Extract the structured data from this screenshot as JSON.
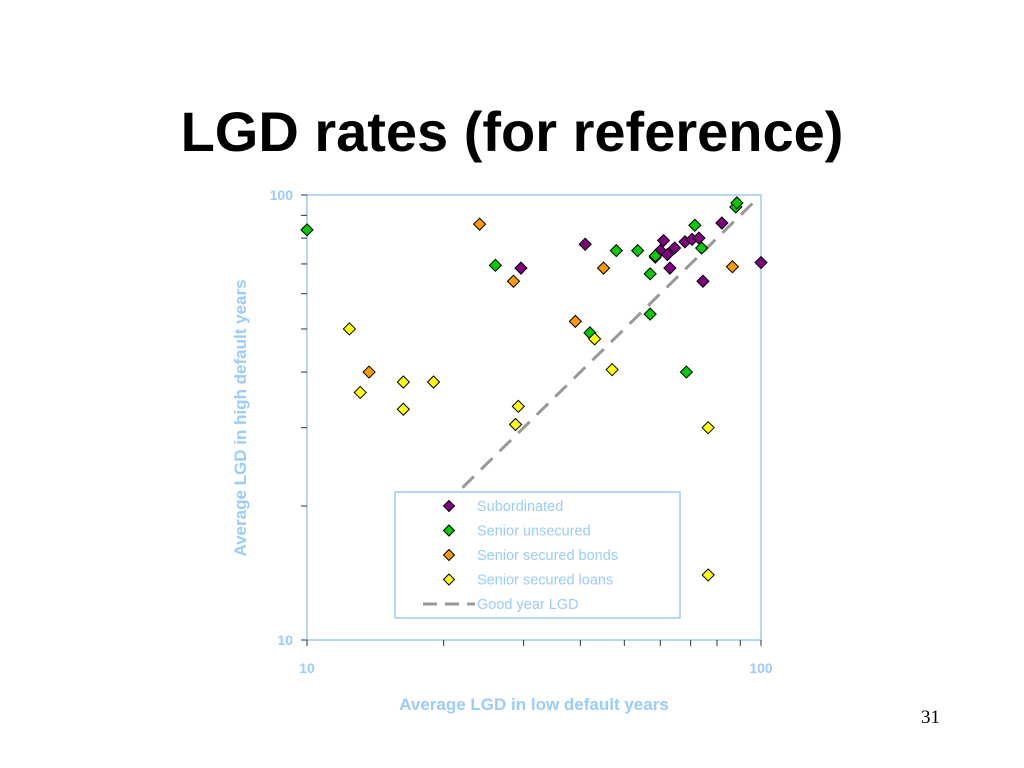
{
  "slide": {
    "title": "LGD rates (for reference)",
    "page_number": "31"
  },
  "colors": {
    "axis_text": "#99CCFF",
    "subordinated": "#800080",
    "senior_unsecured": "#00CC00",
    "senior_secured_bonds": "#FF9900",
    "senior_secured_loans": "#FFFF00",
    "reference_line": "#999999"
  },
  "chart_data": {
    "type": "scatter",
    "xlabel": "Average LGD in low default years",
    "ylabel": "Average LGD in high default years",
    "xscale": "log",
    "yscale": "log",
    "xlim": [
      10,
      100
    ],
    "ylim": [
      10,
      100
    ],
    "xticks": [
      "10",
      "100"
    ],
    "yticks": [
      "10",
      "100"
    ],
    "grid": false,
    "legend_position": "bottom-right (inside plot)",
    "series": [
      {
        "name": "Subordinated",
        "marker": "diamond",
        "color": "#800080",
        "points": [
          [
            29.6,
            68.5
          ],
          [
            41,
            77.5
          ],
          [
            58.5,
            72.5
          ],
          [
            60,
            75
          ],
          [
            61,
            79
          ],
          [
            62.2,
            73.5
          ],
          [
            63,
            68.5
          ],
          [
            64.5,
            76
          ],
          [
            68,
            78.5
          ],
          [
            70.5,
            79.5
          ],
          [
            73,
            80
          ],
          [
            74.5,
            64
          ],
          [
            82,
            86.5
          ],
          [
            100,
            70.5
          ]
        ]
      },
      {
        "name": "Senior unsecured",
        "marker": "diamond",
        "color": "#00CC00",
        "points": [
          [
            10,
            83.5
          ],
          [
            26,
            69.5
          ],
          [
            42,
            49
          ],
          [
            48,
            75
          ],
          [
            53.5,
            75
          ],
          [
            57,
            54
          ],
          [
            57,
            66.5
          ],
          [
            58.5,
            73
          ],
          [
            68.5,
            40
          ],
          [
            71.5,
            85.5
          ],
          [
            74,
            76
          ],
          [
            88,
            94
          ],
          [
            88.5,
            96
          ]
        ]
      },
      {
        "name": "Senior secured bonds",
        "marker": "diamond",
        "color": "#FF9900",
        "points": [
          [
            13.7,
            40
          ],
          [
            24,
            86
          ],
          [
            28.5,
            64
          ],
          [
            39,
            52
          ],
          [
            45,
            68.5
          ],
          [
            86.5,
            69
          ]
        ]
      },
      {
        "name": "Senior secured loans",
        "marker": "diamond",
        "color": "#FFFF00",
        "points": [
          [
            12.4,
            50
          ],
          [
            13.1,
            36
          ],
          [
            16.3,
            33
          ],
          [
            16.3,
            38
          ],
          [
            19,
            38
          ],
          [
            28.8,
            30.5
          ],
          [
            29.2,
            33.5
          ],
          [
            43,
            47.5
          ],
          [
            47,
            40.5
          ],
          [
            76.5,
            30
          ],
          [
            76.5,
            14
          ]
        ]
      }
    ],
    "reference_line": {
      "name": "Good year LGD",
      "style": "dashed",
      "color": "#999999",
      "points": [
        [
          22,
          22
        ],
        [
          98,
          98
        ]
      ]
    }
  }
}
